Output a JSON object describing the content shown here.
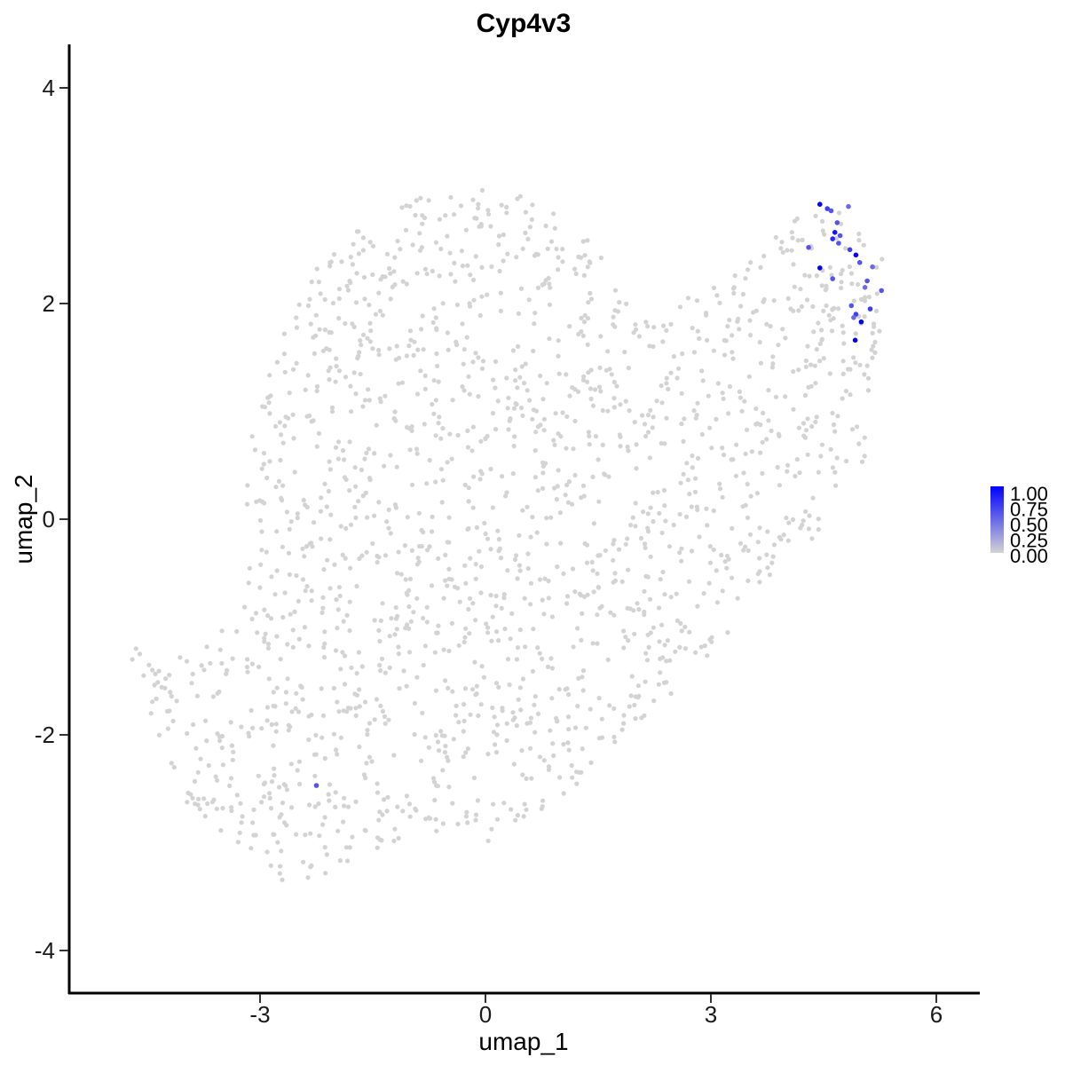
{
  "chart_data": {
    "type": "scatter",
    "title": "Cyp4v3",
    "xlabel": "umap_1",
    "ylabel": "umap_2",
    "xlim": [
      -6.0,
      6.6
    ],
    "ylim": [
      -4.3,
      4.4
    ],
    "x_ticks": [
      -3,
      0,
      3,
      6
    ],
    "x_tick_labels": [
      "-3",
      "0",
      "3",
      "6"
    ],
    "y_ticks": [
      -4,
      -2,
      0,
      2,
      4
    ],
    "y_tick_labels": [
      "-4",
      "-2",
      "0",
      "2",
      "4"
    ],
    "grid": false,
    "legend": {
      "placement": "right",
      "type": "colorbar",
      "range": [
        0,
        1
      ],
      "labels": [
        "1.00",
        "0.75",
        "0.50",
        "0.25",
        "0.00"
      ],
      "color_low": "#d3d3d3",
      "color_high": "#0000ff"
    },
    "background_point_color": "#d3d3d3",
    "background_point_count": 1800,
    "expressing_points": [
      {
        "x": 4.45,
        "y": 2.92,
        "value": 1.0
      },
      {
        "x": 4.55,
        "y": 2.88,
        "value": 0.7
      },
      {
        "x": 4.6,
        "y": 2.86,
        "value": 0.6
      },
      {
        "x": 4.83,
        "y": 2.9,
        "value": 0.5
      },
      {
        "x": 4.68,
        "y": 2.75,
        "value": 0.6
      },
      {
        "x": 4.65,
        "y": 2.66,
        "value": 0.9
      },
      {
        "x": 4.72,
        "y": 2.63,
        "value": 0.6
      },
      {
        "x": 4.62,
        "y": 2.6,
        "value": 0.8
      },
      {
        "x": 4.7,
        "y": 2.56,
        "value": 0.6
      },
      {
        "x": 4.3,
        "y": 2.52,
        "value": 0.6
      },
      {
        "x": 4.85,
        "y": 2.5,
        "value": 0.7
      },
      {
        "x": 4.93,
        "y": 2.45,
        "value": 1.0
      },
      {
        "x": 4.98,
        "y": 2.38,
        "value": 0.6
      },
      {
        "x": 4.45,
        "y": 2.33,
        "value": 1.0
      },
      {
        "x": 5.15,
        "y": 2.34,
        "value": 0.5
      },
      {
        "x": 4.62,
        "y": 2.23,
        "value": 0.6
      },
      {
        "x": 5.08,
        "y": 2.21,
        "value": 0.6
      },
      {
        "x": 5.05,
        "y": 2.15,
        "value": 0.5
      },
      {
        "x": 5.27,
        "y": 2.12,
        "value": 0.6
      },
      {
        "x": 4.87,
        "y": 1.98,
        "value": 0.6
      },
      {
        "x": 5.12,
        "y": 1.95,
        "value": 0.7
      },
      {
        "x": 4.93,
        "y": 1.9,
        "value": 0.7
      },
      {
        "x": 4.9,
        "y": 1.87,
        "value": 0.5
      },
      {
        "x": 5.0,
        "y": 1.83,
        "value": 1.0
      },
      {
        "x": 4.92,
        "y": 1.66,
        "value": 1.0
      },
      {
        "x": -2.25,
        "y": -2.47,
        "value": 0.6
      }
    ]
  }
}
